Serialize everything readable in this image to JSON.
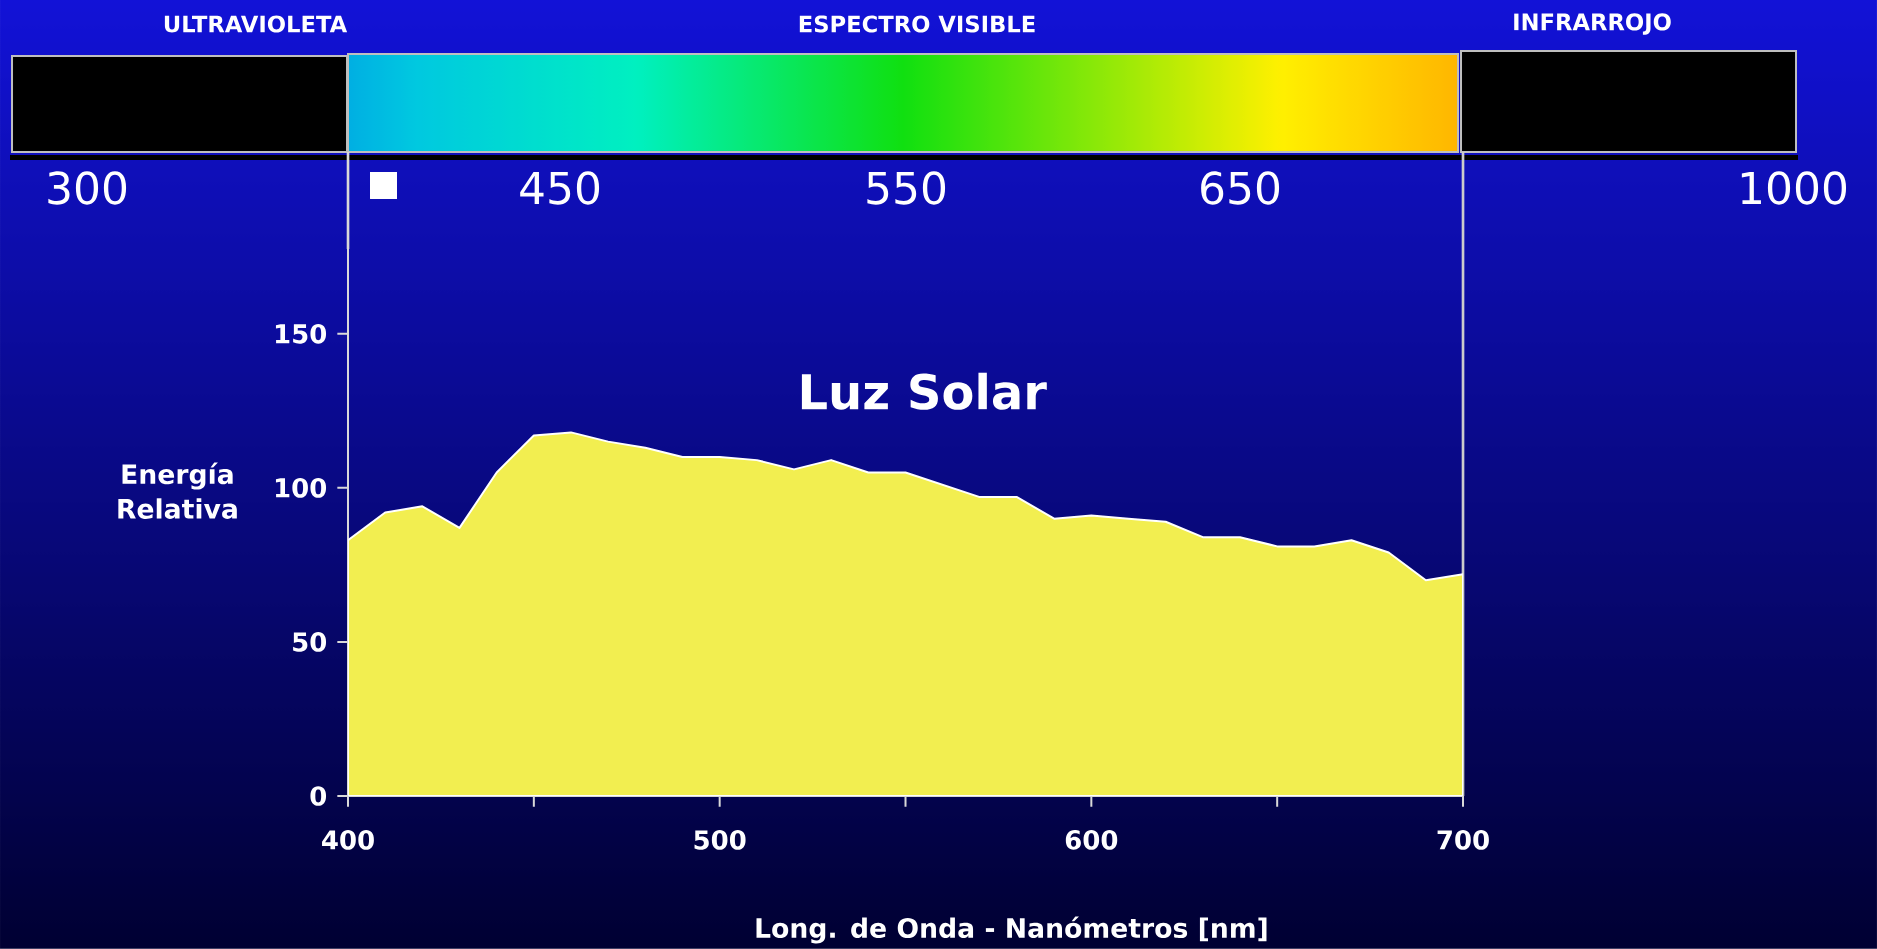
{
  "chart_data": {
    "type": "area",
    "title": "Luz Solar",
    "xlabel": "Long. de Onda - Nanómetros [nm]",
    "ylabel": "Energía Relativa",
    "x": [
      400,
      410,
      420,
      430,
      440,
      450,
      460,
      470,
      480,
      490,
      500,
      510,
      520,
      530,
      540,
      550,
      560,
      570,
      580,
      590,
      600,
      610,
      620,
      630,
      640,
      650,
      660,
      670,
      680,
      690,
      700
    ],
    "series": [
      {
        "color": "#f2ee50",
        "values": [
          83,
          92,
          94,
          87,
          105,
          117,
          118,
          115,
          113,
          110,
          110,
          109,
          106,
          109,
          105,
          105,
          101,
          97,
          97,
          90,
          91,
          90,
          89,
          84,
          84,
          81,
          81,
          83,
          79,
          70,
          72
        ]
      }
    ],
    "xlim": [
      400,
      700
    ],
    "ylim": [
      0,
      209
    ],
    "xticks": [
      400,
      {
        "value": 450,
        "label": null
      },
      500,
      {
        "value": 550,
        "label": null
      },
      600,
      {
        "value": 650,
        "label": null
      },
      700
    ],
    "yticks": [
      0,
      50,
      100,
      150
    ],
    "annotations": [
      "ULTRAVIOLETA",
      "ESPECTRO VISIBLE",
      "INFRARROJO",
      "300",
      "450",
      "550",
      "650",
      "1000"
    ]
  }
}
